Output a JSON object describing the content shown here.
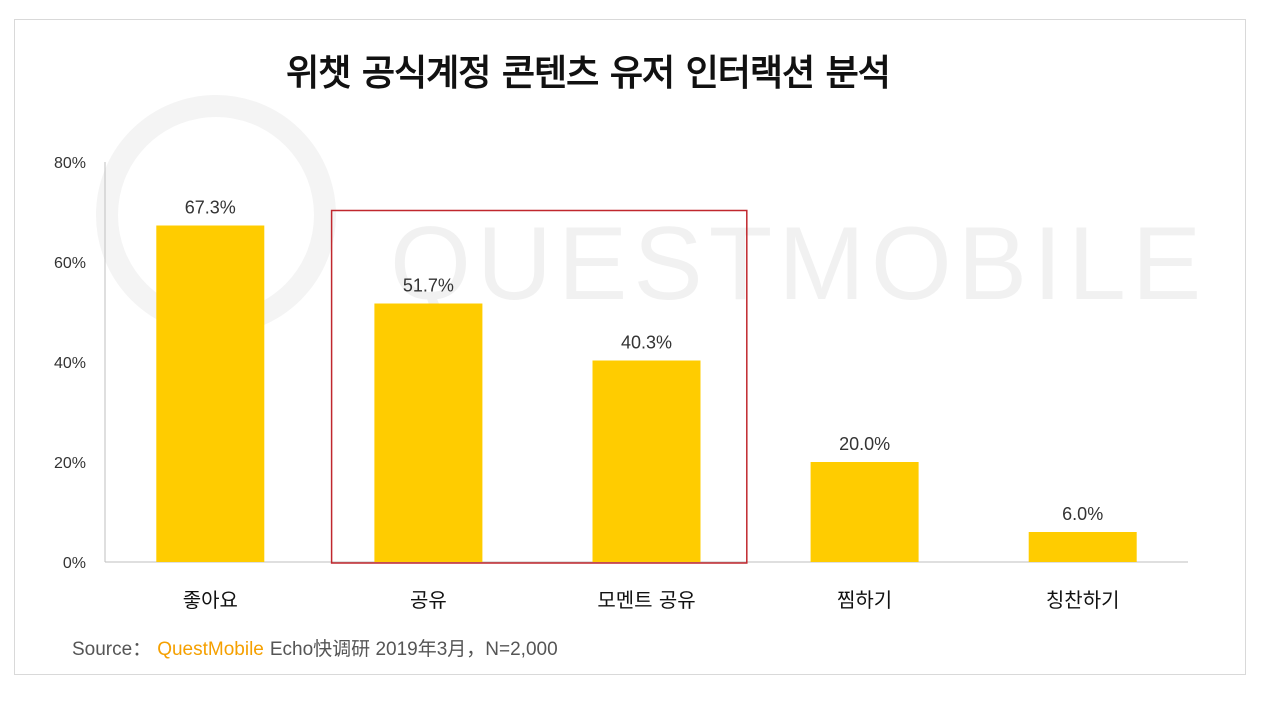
{
  "chart_data": {
    "type": "bar",
    "title": "위챗 공식계정 콘텐츠 유저 인터랙션 분석",
    "categories": [
      "좋아요",
      "공유",
      "모멘트 공유",
      "찜하기",
      "칭찬하기"
    ],
    "values": [
      67.3,
      51.7,
      40.3,
      20.0,
      6.0
    ],
    "value_labels": [
      "67.3%",
      "51.7%",
      "40.3%",
      "20.0%",
      "6.0%"
    ],
    "yticks": [
      "0%",
      "20%",
      "40%",
      "60%",
      "80%"
    ],
    "ylim": [
      0,
      80
    ],
    "xlabel": "",
    "ylabel": "",
    "grid": false,
    "bar_color": "#FFCC00",
    "highlight": {
      "categories": [
        "공유",
        "모멘트 공유"
      ],
      "color": "#C0272D"
    }
  },
  "watermark": "QUESTMOBILE",
  "source": {
    "prefix": "Source：",
    "brand": "QuestMobile",
    "text": "Echo快调研 2019年3月，N=2,000"
  }
}
